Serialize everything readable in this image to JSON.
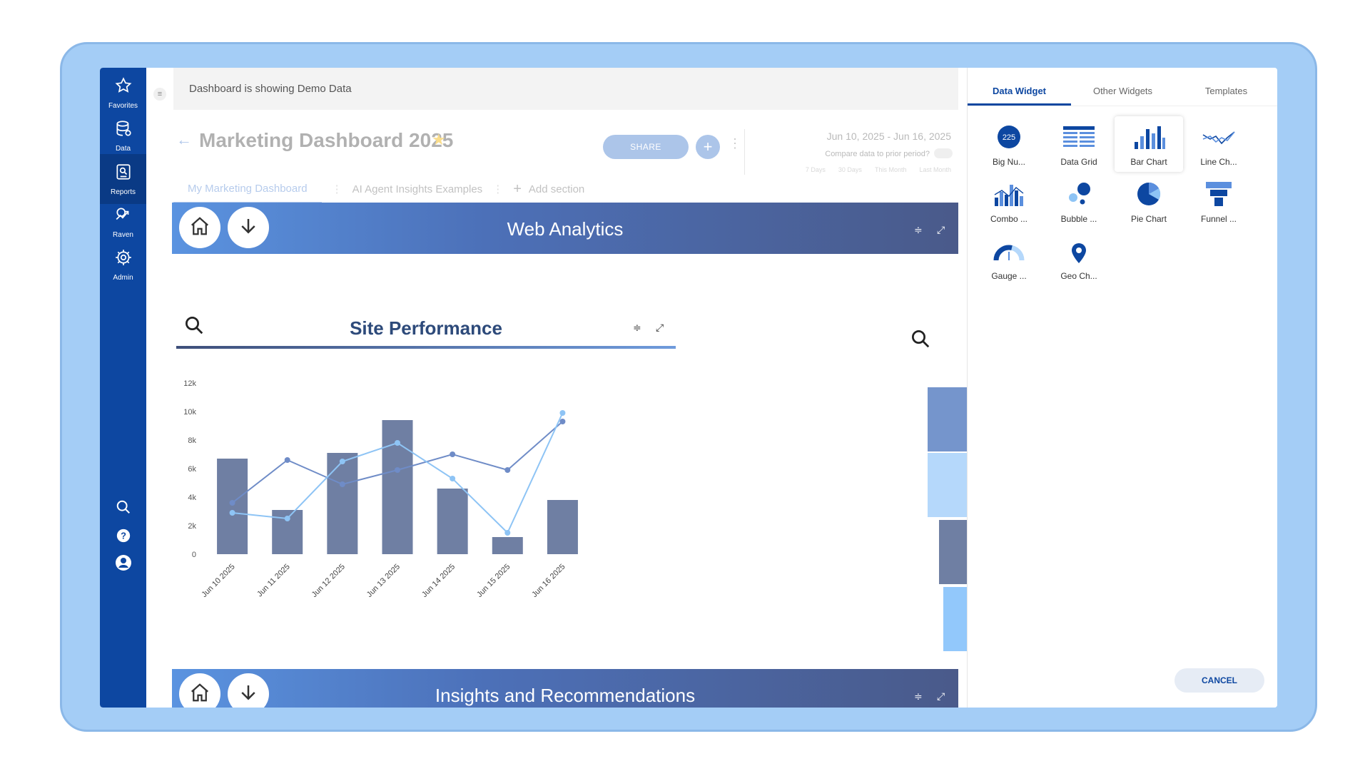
{
  "sidebar": {
    "items": [
      {
        "label": "Favorites",
        "icon": "star-icon"
      },
      {
        "label": "Data",
        "icon": "database-icon"
      },
      {
        "label": "Reports",
        "icon": "reports-icon"
      },
      {
        "label": "Raven",
        "icon": "raven-icon"
      },
      {
        "label": "Admin",
        "icon": "gear-icon"
      }
    ],
    "active": "Reports",
    "bottom": [
      "search-icon",
      "help-icon",
      "user-icon"
    ]
  },
  "banner": {
    "text": "Dashboard is showing Demo Data"
  },
  "dashboard": {
    "title": "Marketing Dashboard 2025",
    "share_label": "SHARE",
    "date_range": "Jun 10, 2025 - Jun 16, 2025",
    "compare_label": "Compare data to prior period?",
    "quick_ranges": [
      "7 Days",
      "30 Days",
      "This Month",
      "Last Month"
    ]
  },
  "tabs": {
    "items": [
      "My Marketing Dashboard",
      "AI Agent Insights Examples"
    ],
    "add_label": "Add section"
  },
  "sections": [
    {
      "title": "Web Analytics"
    },
    {
      "title": "Insights and Recommendations"
    }
  ],
  "widget": {
    "title": "Site Performance"
  },
  "chart_data": {
    "type": "bar",
    "categories": [
      "Jun 10 2025",
      "Jun 11 2025",
      "Jun 12 2025",
      "Jun 13 2025",
      "Jun 14 2025",
      "Jun 15 2025",
      "Jun 16 2025"
    ],
    "series": [
      {
        "type": "bar",
        "values": [
          6700,
          3100,
          7100,
          9400,
          4600,
          1200,
          3800
        ]
      },
      {
        "type": "line",
        "values": [
          3600,
          6600,
          4900,
          5900,
          7000,
          5900,
          9300
        ]
      },
      {
        "type": "line",
        "values": [
          2900,
          2500,
          6500,
          7800,
          5300,
          1500,
          9900
        ]
      }
    ],
    "yticks": [
      "0",
      "2k",
      "4k",
      "6k",
      "8k",
      "10k",
      "12k"
    ],
    "ylim": [
      0,
      12000
    ],
    "colors": {
      "bar": "#6f7fa3",
      "line1": "#6f8cc7",
      "line2": "#8ec4f5"
    }
  },
  "funnel_colors": [
    "#7595cc",
    "#b5d8fb",
    "#6f7fa3",
    "#92c8fb"
  ],
  "panel": {
    "tabs": [
      "Data Widget",
      "Other Widgets",
      "Templates"
    ],
    "active_tab": "Data Widget",
    "widgets": [
      {
        "label": "Big Nu...",
        "icon": "big-number-icon",
        "badge": "225"
      },
      {
        "label": "Data Grid",
        "icon": "data-grid-icon"
      },
      {
        "label": "Bar Chart",
        "icon": "bar-chart-icon"
      },
      {
        "label": "Line Ch...",
        "icon": "line-chart-icon"
      },
      {
        "label": "Combo ...",
        "icon": "combo-chart-icon"
      },
      {
        "label": "Bubble ...",
        "icon": "bubble-chart-icon"
      },
      {
        "label": "Pie Chart",
        "icon": "pie-chart-icon"
      },
      {
        "label": "Funnel ...",
        "icon": "funnel-icon"
      },
      {
        "label": "Gauge ...",
        "icon": "gauge-icon"
      },
      {
        "label": "Geo Ch...",
        "icon": "geo-pin-icon"
      }
    ],
    "selected": "Bar Chart",
    "cancel_label": "CANCEL"
  },
  "colors": {
    "brand": "#0d47a1",
    "accent": "#4a7fd0",
    "frame": "#a4cdf6"
  }
}
